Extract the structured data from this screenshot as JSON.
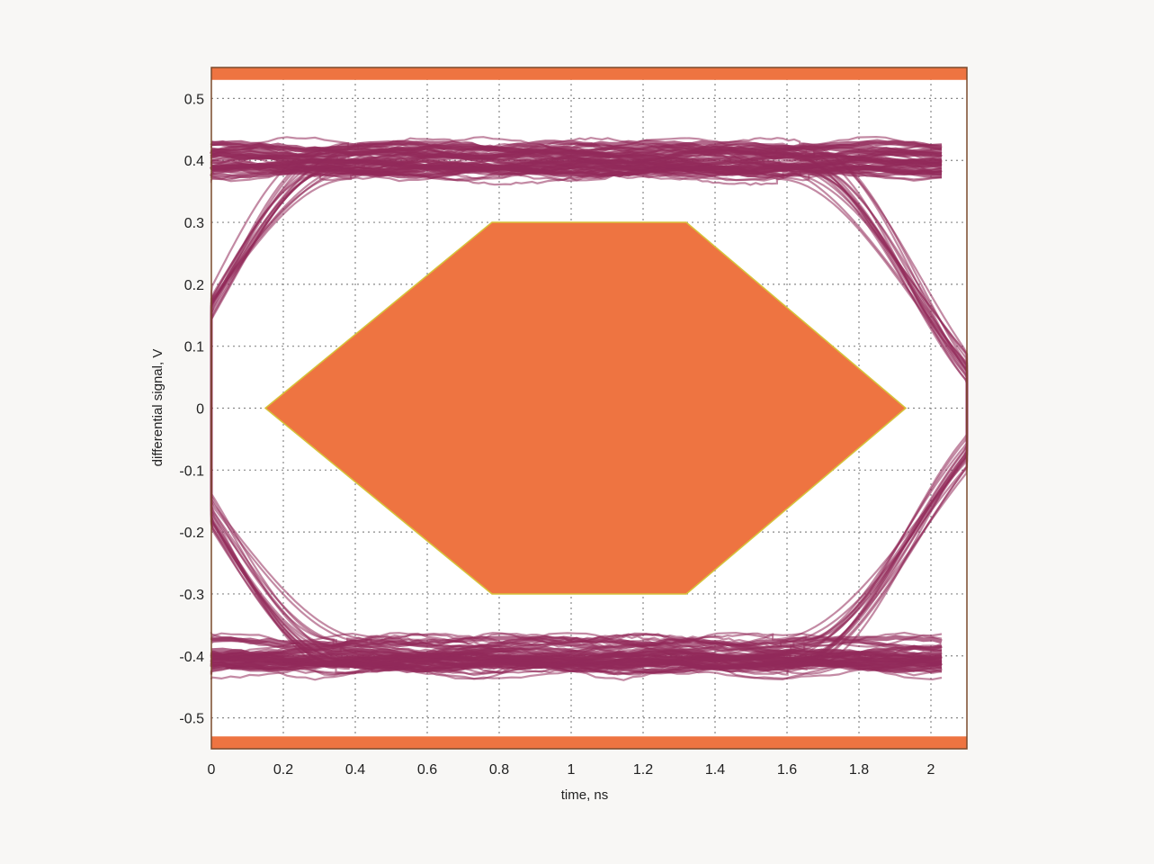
{
  "chart_data": {
    "type": "line",
    "subtype": "eye-diagram",
    "title": "",
    "xlabel": "time, ns",
    "ylabel": "differential signal, V",
    "xlim": [
      0,
      2.1
    ],
    "ylim": [
      -0.55,
      0.55
    ],
    "grid": true,
    "x_ticks": [
      "0",
      "0.2",
      "0.4",
      "0.6",
      "0.8",
      "1",
      "1.2",
      "1.4",
      "1.6",
      "1.8",
      "2"
    ],
    "y_ticks": [
      "0.5",
      "0.4",
      "0.3",
      "0.2",
      "0.1",
      "0",
      "-0.1",
      "-0.2",
      "-0.3",
      "-0.4",
      "-0.5"
    ],
    "mask": {
      "polygon": [
        [
          0.15,
          0
        ],
        [
          0.78,
          0.3
        ],
        [
          1.32,
          0.3
        ],
        [
          1.93,
          0
        ],
        [
          1.32,
          -0.3
        ],
        [
          0.78,
          -0.3
        ]
      ],
      "upper_limit_band": [
        0.53,
        0.55
      ],
      "lower_limit_band": [
        -0.55,
        -0.53
      ]
    },
    "eye": {
      "bit_period_ns": 2.0,
      "crossing_time_ns": 0.03,
      "high_level_v": 0.4,
      "low_level_v": -0.4,
      "rail_spread_v": 0.03
    },
    "colors": {
      "mask": "#ee7441",
      "mask_edge": "#d6c23a",
      "trace": "#922a5a",
      "grid": "#888888",
      "frame": "#7a4a2c"
    }
  }
}
